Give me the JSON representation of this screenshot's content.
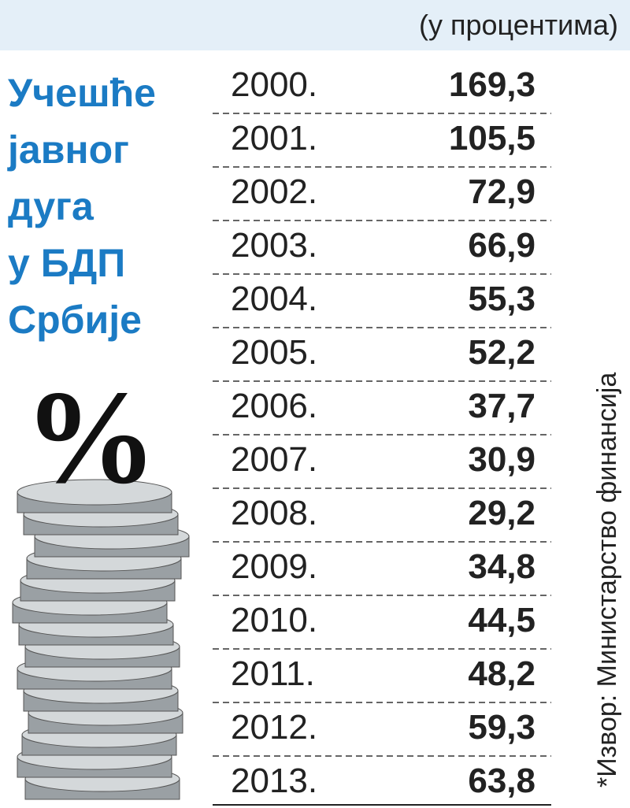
{
  "header": {
    "unit": "(у процентима)",
    "title_lines": [
      "Учешће",
      "јавног",
      "дуга",
      "у БДП",
      "Србије"
    ],
    "symbol": "%"
  },
  "table": {
    "rows": [
      [
        "2000.",
        "169,3"
      ],
      [
        "2001.",
        "105,5"
      ],
      [
        "2002.",
        "72,9"
      ],
      [
        "2003.",
        "66,9"
      ],
      [
        "2004.",
        "55,3"
      ],
      [
        "2005.",
        "52,2"
      ],
      [
        "2006.",
        "37,7"
      ],
      [
        "2007.",
        "30,9"
      ],
      [
        "2008.",
        "29,2"
      ],
      [
        "2009.",
        "34,8"
      ],
      [
        "2010.",
        "44,5"
      ],
      [
        "2011.",
        "48,2"
      ],
      [
        "2012.",
        "59,3"
      ],
      [
        "2013.",
        "63,8"
      ]
    ]
  },
  "footer": {
    "source": "*Извор: Министарство финансија"
  }
}
